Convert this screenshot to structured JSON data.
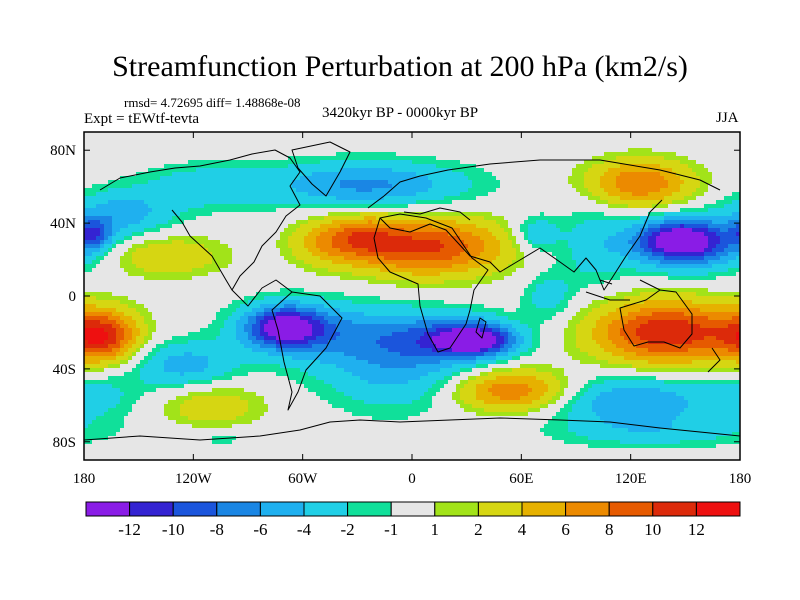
{
  "figure": {
    "title": "Streamfunction Perturbation at 200 hPa (km2/s)",
    "stats_line": "rmsd= 4.72695 diff= 1.48868e-08",
    "experiment_label": "Expt = tEWtf-tevta",
    "period_label": "3420kyr BP - 0000kyr BP",
    "season_label": "JJA"
  },
  "chart_data": {
    "type": "heatmap",
    "title": "Streamfunction Perturbation at 200 hPa (km2/s)",
    "xlim": [
      -180,
      180
    ],
    "ylim": [
      -90,
      90
    ],
    "x_ticks": [
      {
        "value": -180,
        "label": "180"
      },
      {
        "value": -120,
        "label": "120W"
      },
      {
        "value": -60,
        "label": "60W"
      },
      {
        "value": 0,
        "label": "0"
      },
      {
        "value": 60,
        "label": "60E"
      },
      {
        "value": 120,
        "label": "120E"
      },
      {
        "value": 180,
        "label": "180"
      }
    ],
    "y_ticks": [
      {
        "value": 80,
        "label": "80N"
      },
      {
        "value": 40,
        "label": "40N"
      },
      {
        "value": 0,
        "label": "0"
      },
      {
        "value": -40,
        "label": "40S"
      },
      {
        "value": -80,
        "label": "80S"
      }
    ],
    "colorbar": {
      "labels": [
        "-12",
        "-10",
        "-8",
        "-6",
        "-4",
        "-2",
        "-1",
        "1",
        "2",
        "4",
        "6",
        "8",
        "10",
        "12"
      ],
      "colors": [
        "#8a1ce6",
        "#3423d2",
        "#1b55dc",
        "#1a86e4",
        "#1fb0ef",
        "#20cfe6",
        "#10e09a",
        "#e6e6e6",
        "#a2e319",
        "#d6d612",
        "#e6b100",
        "#ec8a00",
        "#e65a00",
        "#dc2a0a",
        "#ee1010"
      ]
    },
    "field_features": [
      {
        "lon": -47,
        "lat": 30,
        "amp": 4.5,
        "slon": 14,
        "slat": 9
      },
      {
        "lon": 8,
        "lat": 27,
        "amp": 10.5,
        "slon": 30,
        "slat": 11
      },
      {
        "lon": -25,
        "lat": 33,
        "amp": 5,
        "slon": 13,
        "slat": 8
      },
      {
        "lon": 125,
        "lat": 62,
        "amp": 8,
        "slon": 20,
        "slat": 9
      },
      {
        "lon": 147,
        "lat": 31,
        "amp": -12,
        "slon": 17,
        "slat": 8
      },
      {
        "lon": 155,
        "lat": 26,
        "amp": -5,
        "slon": 25,
        "slat": 10
      },
      {
        "lon": 68,
        "lat": 34,
        "amp": -4,
        "slon": 9,
        "slat": 7
      },
      {
        "lon": 100,
        "lat": 28,
        "amp": -3,
        "slon": 14,
        "slat": 16
      },
      {
        "lon": 75,
        "lat": 0,
        "amp": -3,
        "slon": 10,
        "slat": 10
      },
      {
        "lon": -25,
        "lat": 61,
        "amp": -6.5,
        "slon": 38,
        "slat": 9
      },
      {
        "lon": -115,
        "lat": 60,
        "amp": -3,
        "slon": 25,
        "slat": 9
      },
      {
        "lon": -160,
        "lat": 45,
        "amp": -5,
        "slon": 20,
        "slat": 9
      },
      {
        "lon": -175,
        "lat": 34,
        "amp": -7,
        "slon": 7,
        "slat": 6
      },
      {
        "lon": -135,
        "lat": 22,
        "amp": 4,
        "slon": 22,
        "slat": 8
      },
      {
        "lon": -70,
        "lat": -17,
        "amp": -11.5,
        "slon": 15,
        "slat": 8
      },
      {
        "lon": -50,
        "lat": -20,
        "amp": -5,
        "slon": 30,
        "slat": 12
      },
      {
        "lon": 35,
        "lat": -24,
        "amp": -12,
        "slon": 15,
        "slat": 6
      },
      {
        "lon": 15,
        "lat": -23,
        "amp": -6,
        "slon": 26,
        "slat": 10
      },
      {
        "lon": -10,
        "lat": -40,
        "amp": -4.5,
        "slon": 28,
        "slat": 16
      },
      {
        "lon": -125,
        "lat": -38,
        "amp": -5,
        "slon": 20,
        "slat": 9
      },
      {
        "lon": -170,
        "lat": -22,
        "amp": 10.5,
        "slon": 14,
        "slat": 10
      },
      {
        "lon": -175,
        "lat": -55,
        "amp": -2.5,
        "slon": 20,
        "slat": 10
      },
      {
        "lon": -110,
        "lat": -60,
        "amp": 3.5,
        "slon": 20,
        "slat": 9
      },
      {
        "lon": -105,
        "lat": -78,
        "amp": -1.5,
        "slon": 20,
        "slat": 4
      },
      {
        "lon": 140,
        "lat": -20,
        "amp": 12,
        "slon": 28,
        "slat": 12
      },
      {
        "lon": 55,
        "lat": -52,
        "amp": 8,
        "slon": 22,
        "slat": 8
      },
      {
        "lon": 120,
        "lat": -58,
        "amp": -6,
        "slon": 30,
        "slat": 10
      },
      {
        "lon": 135,
        "lat": -75,
        "amp": -2.5,
        "slon": 40,
        "slat": 6
      }
    ]
  }
}
